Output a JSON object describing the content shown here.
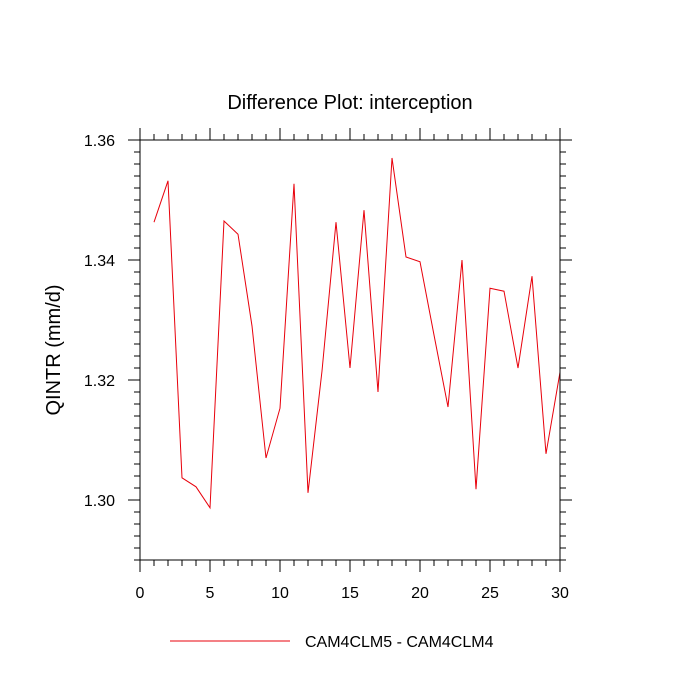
{
  "chart_data": {
    "type": "line",
    "title": "Difference Plot: interception",
    "xlabel": "",
    "ylabel": "QINTR  (mm/d)",
    "xlim": [
      0,
      30
    ],
    "ylim": [
      1.29,
      1.36
    ],
    "x_ticks": [
      0,
      5,
      10,
      15,
      20,
      25,
      30
    ],
    "x_tick_labels": [
      "0",
      "5",
      "10",
      "15",
      "20",
      "25",
      "30"
    ],
    "y_ticks": [
      1.3,
      1.32,
      1.34,
      1.36
    ],
    "y_tick_labels": [
      "1.30",
      "1.32",
      "1.34",
      "1.36"
    ],
    "grid": false,
    "legend_position": "bottom",
    "series": [
      {
        "name": "CAM4CLM5 - CAM4CLM4",
        "color": "#e8000b",
        "x": [
          1,
          2,
          3,
          4,
          5,
          6,
          7,
          8,
          9,
          10,
          11,
          12,
          13,
          14,
          15,
          16,
          17,
          18,
          19,
          20,
          21,
          22,
          23,
          24,
          25,
          26,
          27,
          28,
          29,
          30
        ],
        "values": [
          1.3463,
          1.3532,
          1.3037,
          1.3022,
          1.2987,
          1.3465,
          1.3443,
          1.329,
          1.307,
          1.3153,
          1.3527,
          1.3012,
          1.3215,
          1.3463,
          1.322,
          1.3483,
          1.318,
          1.357,
          1.3405,
          1.3397,
          1.3275,
          1.3155,
          1.34,
          1.3018,
          1.3353,
          1.3348,
          1.322,
          1.3373,
          1.3077,
          1.3213
        ]
      }
    ]
  }
}
